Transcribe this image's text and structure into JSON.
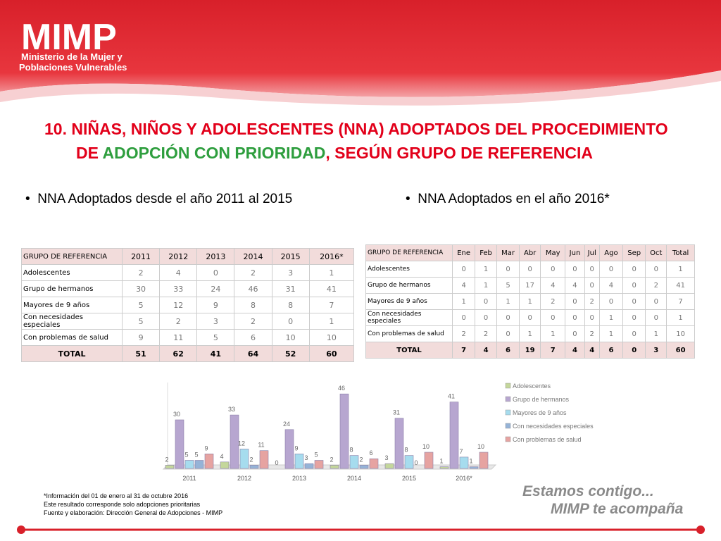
{
  "header": {
    "logo": "MIMP",
    "ministry_line_1": "Ministerio de la Mujer y",
    "ministry_line_2": "Poblaciones Vulnerables"
  },
  "title": [
    "10. NIÑAS, NIÑOS Y ADOLESCENTES (NNA) ADOPTADOS DEL PROCEDIMIENTO",
    "DE ",
    "ADOPCIÓN CON PRIORIDAD",
    ", SEGÚN GRUPO DE REFERENCIA"
  ],
  "bullets": [
    "NNA Adoptados desde el año 2011 al 2015",
    "NNA Adoptados en el año 2016*"
  ],
  "table_1": {
    "header": [
      "GRUPO DE REFERENCIA",
      "2011",
      "2012",
      "2013",
      "2014",
      "2015",
      "2016*"
    ],
    "rows": [
      [
        "Adolescentes",
        2,
        4,
        0,
        2,
        3,
        1
      ],
      [
        "Grupo de hermanos",
        30,
        33,
        24,
        46,
        31,
        41
      ],
      [
        "Mayores de 9 años",
        5,
        12,
        9,
        8,
        8,
        7
      ],
      [
        "Con necesidades especiales",
        5,
        2,
        3,
        2,
        0,
        1
      ],
      [
        "Con problemas de salud",
        9,
        11,
        5,
        6,
        10,
        10
      ],
      [
        "TOTAL",
        51,
        62,
        41,
        64,
        52,
        60
      ]
    ]
  },
  "table_2": {
    "header": [
      "GRUPO DE REFERENCIA",
      "Ene",
      "Feb",
      "Mar",
      "Abr",
      "May",
      "Jun",
      "Jul",
      "Ago",
      "Sep",
      "Oct",
      "Total"
    ],
    "rows": [
      [
        "Adolescentes",
        0,
        1,
        0,
        0,
        0,
        0,
        0,
        0,
        0,
        0,
        1
      ],
      [
        "Grupo de hermanos",
        4,
        1,
        5,
        17,
        4,
        4,
        0,
        4,
        0,
        2,
        41
      ],
      [
        "Mayores de 9 años",
        1,
        0,
        1,
        1,
        2,
        0,
        2,
        0,
        0,
        0,
        7
      ],
      [
        "Con necesidades especiales",
        0,
        0,
        0,
        0,
        0,
        0,
        0,
        1,
        0,
        0,
        1
      ],
      [
        "Con problemas de salud",
        2,
        2,
        0,
        1,
        1,
        0,
        2,
        1,
        0,
        1,
        10
      ],
      [
        "TOTAL",
        7,
        4,
        6,
        19,
        7,
        4,
        4,
        6,
        0,
        3,
        60
      ]
    ]
  },
  "chart_data": {
    "type": "bar",
    "categories": [
      "2011",
      "2012",
      "2013",
      "2014",
      "2015",
      "2016*"
    ],
    "series": [
      {
        "name": "Adolescentes",
        "color": "#c4d79b",
        "values": [
          2,
          4,
          0,
          2,
          3,
          1
        ]
      },
      {
        "name": "Grupo de hermanos",
        "color": "#b7a6d0",
        "values": [
          30,
          33,
          24,
          46,
          31,
          41
        ]
      },
      {
        "name": "Mayores de 9 años",
        "color": "#a6dcee",
        "values": [
          5,
          12,
          9,
          8,
          8,
          7
        ]
      },
      {
        "name": "Con necesidades especiales",
        "color": "#95b3d7",
        "values": [
          5,
          2,
          3,
          2,
          0,
          1
        ]
      },
      {
        "name": "Con problemas de salud",
        "color": "#e6a3a1",
        "values": [
          9,
          11,
          5,
          6,
          10,
          10
        ]
      }
    ],
    "legend": "right"
  },
  "notes": [
    "*Información del 01 de enero al 31 de octubre 2016",
    "Este resultado corresponde solo adopciones prioritarias",
    "Fuente y elaboración: Dirección General de Adopciones - MIMP"
  ],
  "slogan": [
    "Estamos contigo...",
    "MIMP te acompaña"
  ]
}
